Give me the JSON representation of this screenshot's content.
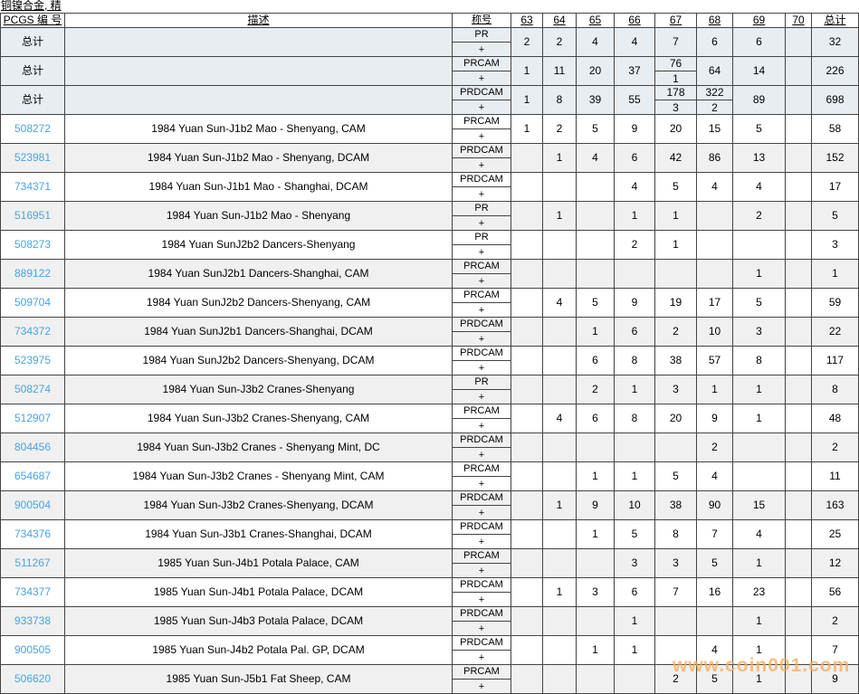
{
  "page": {
    "title": "铜镍合金, 精",
    "watermark": "www.coin001.com"
  },
  "colors": {
    "link_blue": "#4aa3e0",
    "total_row_bg": "#e8edf2",
    "alt_row_bg": "#f0f0f0",
    "grid_line": "#444444",
    "watermark_orange": "#f7ac5c"
  },
  "table": {
    "plus_label": "+",
    "headers": {
      "id": "PCGS 编 号",
      "desc": "描述",
      "grade": "称号",
      "g63": "63",
      "g64": "64",
      "g65": "65",
      "g66": "66",
      "g67": "67",
      "g68": "68",
      "g69": "69",
      "g70": "70",
      "total": "总计"
    },
    "rows": [
      {
        "id": "总计",
        "desc": "",
        "grade": "PR",
        "c63": "2",
        "c64": "2",
        "c65": "4",
        "c66": "4",
        "c67": "7",
        "c68": "6",
        "c69": "6",
        "c70": "",
        "total": "32"
      },
      {
        "id": "总计",
        "desc": "",
        "grade": "PRCAM",
        "c63": "1",
        "c64": "11",
        "c65": "20",
        "c66": "37",
        "c67_top": "76",
        "c67_bottom": "1",
        "c68": "64",
        "c69": "14",
        "c70": "",
        "total": "226"
      },
      {
        "id": "总计",
        "desc": "",
        "grade": "PRDCAM",
        "c63": "1",
        "c64": "8",
        "c65": "39",
        "c66": "55",
        "c67_top": "178",
        "c67_bottom": "3",
        "c68_top": "322",
        "c68_bottom": "2",
        "c69": "89",
        "c70": "",
        "total": "698"
      },
      {
        "id": "508272",
        "desc": "1984 Yuan Sun-J1b2 Mao - Shenyang, CAM",
        "grade": "PRCAM",
        "c63": "1",
        "c64": "2",
        "c65": "5",
        "c66": "9",
        "c67": "20",
        "c68": "15",
        "c69": "5",
        "c70": "",
        "total": "58"
      },
      {
        "id": "523981",
        "desc": "1984 Yuan Sun-J1b2 Mao - Shenyang, DCAM",
        "grade": "PRDCAM",
        "c63": "",
        "c64": "1",
        "c65": "4",
        "c66": "6",
        "c67": "42",
        "c68": "86",
        "c69": "13",
        "c70": "",
        "total": "152"
      },
      {
        "id": "734371",
        "desc": "1984 Yuan Sun-J1b1 Mao - Shanghai, DCAM",
        "grade": "PRDCAM",
        "c63": "",
        "c64": "",
        "c65": "",
        "c66": "4",
        "c67": "5",
        "c68": "4",
        "c69": "4",
        "c70": "",
        "total": "17"
      },
      {
        "id": "516951",
        "desc": "1984 Yuan Sun-J1b2 Mao - Shenyang",
        "grade": "PR",
        "c63": "",
        "c64": "1",
        "c65": "",
        "c66": "1",
        "c67": "1",
        "c68": "",
        "c69": "2",
        "c70": "",
        "total": "5"
      },
      {
        "id": "508273",
        "desc": "1984 Yuan SunJ2b2 Dancers-Shenyang",
        "grade": "PR",
        "c63": "",
        "c64": "",
        "c65": "",
        "c66": "2",
        "c67": "1",
        "c68": "",
        "c69": "",
        "c70": "",
        "total": "3"
      },
      {
        "id": "889122",
        "desc": "1984 Yuan SunJ2b1 Dancers-Shanghai, CAM",
        "grade": "PRCAM",
        "c63": "",
        "c64": "",
        "c65": "",
        "c66": "",
        "c67": "",
        "c68": "",
        "c69": "1",
        "c70": "",
        "total": "1"
      },
      {
        "id": "509704",
        "desc": "1984 Yuan SunJ2b2 Dancers-Shenyang, CAM",
        "grade": "PRCAM",
        "c63": "",
        "c64": "4",
        "c65": "5",
        "c66": "9",
        "c67": "19",
        "c68": "17",
        "c69": "5",
        "c70": "",
        "total": "59"
      },
      {
        "id": "734372",
        "desc": "1984 Yuan SunJ2b1 Dancers-Shanghai, DCAM",
        "grade": "PRDCAM",
        "c63": "",
        "c64": "",
        "c65": "1",
        "c66": "6",
        "c67": "2",
        "c68": "10",
        "c69": "3",
        "c70": "",
        "total": "22"
      },
      {
        "id": "523975",
        "desc": "1984 Yuan SunJ2b2 Dancers-Shenyang, DCAM",
        "grade": "PRDCAM",
        "c63": "",
        "c64": "",
        "c65": "6",
        "c66": "8",
        "c67": "38",
        "c68": "57",
        "c69": "8",
        "c70": "",
        "total": "117"
      },
      {
        "id": "508274",
        "desc": "1984 Yuan Sun-J3b2 Cranes-Shenyang",
        "grade": "PR",
        "c63": "",
        "c64": "",
        "c65": "2",
        "c66": "1",
        "c67": "3",
        "c68": "1",
        "c69": "1",
        "c70": "",
        "total": "8"
      },
      {
        "id": "512907",
        "desc": "1984 Yuan Sun-J3b2 Cranes-Shenyang, CAM",
        "grade": "PRCAM",
        "c63": "",
        "c64": "4",
        "c65": "6",
        "c66": "8",
        "c67": "20",
        "c68": "9",
        "c69": "1",
        "c70": "",
        "total": "48"
      },
      {
        "id": "804456",
        "desc": "1984 Yuan Sun-J3b2 Cranes - Shenyang Mint, DC",
        "grade": "PRDCAM",
        "c63": "",
        "c64": "",
        "c65": "",
        "c66": "",
        "c67": "",
        "c68": "2",
        "c69": "",
        "c70": "",
        "total": "2"
      },
      {
        "id": "654687",
        "desc": "1984 Yuan Sun-J3b2 Cranes - Shenyang Mint, CAM",
        "grade": "PRCAM",
        "c63": "",
        "c64": "",
        "c65": "1",
        "c66": "1",
        "c67": "5",
        "c68": "4",
        "c69": "",
        "c70": "",
        "total": "11"
      },
      {
        "id": "900504",
        "desc": "1984 Yuan Sun-J3b2 Cranes-Shenyang, DCAM",
        "grade": "PRDCAM",
        "c63": "",
        "c64": "1",
        "c65": "9",
        "c66": "10",
        "c67": "38",
        "c68": "90",
        "c69": "15",
        "c70": "",
        "total": "163"
      },
      {
        "id": "734376",
        "desc": "1984 Yuan Sun-J3b1 Cranes-Shanghai, DCAM",
        "grade": "PRDCAM",
        "c63": "",
        "c64": "",
        "c65": "1",
        "c66": "5",
        "c67": "8",
        "c68": "7",
        "c69": "4",
        "c70": "",
        "total": "25"
      },
      {
        "id": "511267",
        "desc": "1985 Yuan Sun-J4b1 Potala Palace, CAM",
        "grade": "PRCAM",
        "c63": "",
        "c64": "",
        "c65": "",
        "c66": "3",
        "c67": "3",
        "c68": "5",
        "c69": "1",
        "c70": "",
        "total": "12"
      },
      {
        "id": "734377",
        "desc": "1985 Yuan Sun-J4b1 Potala Palace, DCAM",
        "grade": "PRDCAM",
        "c63": "",
        "c64": "1",
        "c65": "3",
        "c66": "6",
        "c67": "7",
        "c68": "16",
        "c69": "23",
        "c70": "",
        "total": "56"
      },
      {
        "id": "933738",
        "desc": "1985 Yuan Sun-J4b3 Potala Palace, DCAM",
        "grade": "PRDCAM",
        "c63": "",
        "c64": "",
        "c65": "",
        "c66": "1",
        "c67": "",
        "c68": "",
        "c69": "1",
        "c70": "",
        "total": "2"
      },
      {
        "id": "900505",
        "desc": "1985 Yuan Sun-J4b2 Potala Pal. GP, DCAM",
        "grade": "PRDCAM",
        "c63": "",
        "c64": "",
        "c65": "1",
        "c66": "1",
        "c67": "",
        "c68": "4",
        "c69": "1",
        "c70": "",
        "total": "7"
      },
      {
        "id": "506620",
        "desc": "1985 Yuan Sun-J5b1 Fat Sheep, CAM",
        "grade": "PRCAM",
        "c63": "",
        "c64": "",
        "c65": "",
        "c66": "",
        "c67": "2",
        "c68": "5",
        "c69": "1",
        "c70": "",
        "total": "9"
      }
    ]
  }
}
